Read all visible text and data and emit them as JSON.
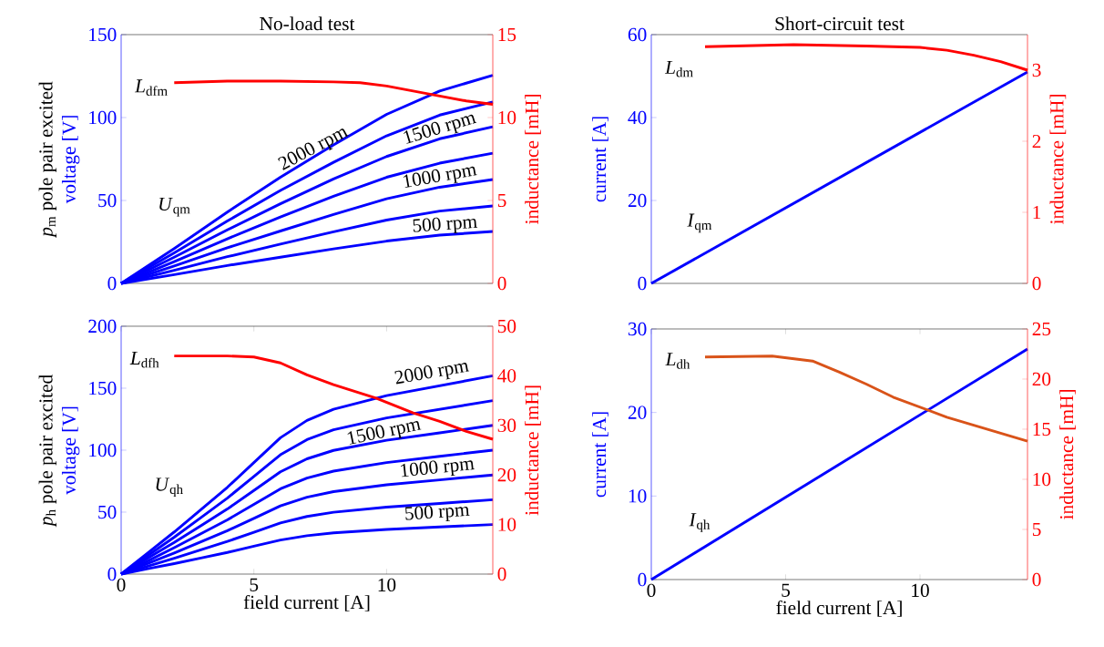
{
  "chart_data": [
    {
      "type": "line",
      "title": "No-load test",
      "ylabel": "voltage [V]",
      "y2label": "inductance [mH]",
      "xlim": [
        0,
        14
      ],
      "ylim": [
        0,
        150
      ],
      "yticks": [
        0,
        50,
        100,
        150
      ],
      "y2lim": [
        0,
        15
      ],
      "y2ticks": [
        0,
        5,
        10,
        15
      ],
      "tick_labels": "y",
      "series": [
        {
          "color": "#0000ff",
          "x": [
            0,
            2,
            4,
            6,
            8,
            10,
            12,
            14
          ],
          "values": [
            0,
            5.3,
            10.8,
            15.8,
            20.8,
            25.5,
            29.1,
            31.3
          ]
        },
        {
          "color": "#0000ff",
          "x": [
            0,
            2,
            4,
            6,
            8,
            10,
            12,
            14
          ],
          "values": [
            0,
            7.9,
            16.1,
            23.7,
            31.1,
            38.2,
            43.6,
            46.7
          ]
        },
        {
          "color": "#0000ff",
          "x": [
            0,
            2,
            4,
            6,
            8,
            10,
            12,
            14
          ],
          "values": [
            0,
            10.5,
            21.5,
            31.6,
            41.5,
            51,
            58,
            62.6
          ]
        },
        {
          "color": "#0000ff",
          "x": [
            0,
            2,
            4,
            6,
            8,
            10,
            12,
            14
          ],
          "values": [
            0,
            13.1,
            26.9,
            40,
            52.5,
            64,
            72.5,
            78.5
          ]
        },
        {
          "color": "#0000ff",
          "x": [
            0,
            2,
            4,
            6,
            8,
            10,
            12,
            14
          ],
          "values": [
            0,
            15.8,
            32.3,
            48,
            63,
            76.5,
            87.2,
            94.4
          ]
        },
        {
          "color": "#0000ff",
          "x": [
            0,
            2,
            4,
            6,
            8,
            10,
            12,
            14
          ],
          "values": [
            0,
            18.4,
            37.6,
            56,
            73,
            89,
            101.5,
            109.4
          ]
        },
        {
          "color": "#0000ff",
          "x": [
            0,
            2,
            4,
            6,
            8,
            10,
            12,
            14
          ],
          "values": [
            0,
            21,
            43,
            64,
            83.5,
            101.9,
            116,
            125.5
          ]
        },
        {
          "color": "#ff0000",
          "axis": "y2",
          "x": [
            2,
            4,
            6,
            8,
            9,
            10,
            11,
            12,
            13,
            14
          ],
          "values": [
            12.1,
            12.2,
            12.2,
            12.15,
            12.1,
            11.9,
            11.6,
            11.3,
            11.0,
            10.8
          ]
        }
      ],
      "annotations": [
        "*p*$_{m}$ pole pair excited",
        "2000 rpm",
        "1500 rpm",
        "1000 rpm",
        "500 rpm",
        "*U*$_{qm}$",
        "*L*$_{dfm}$"
      ]
    },
    {
      "type": "line",
      "title": "Short-circuit test",
      "ylabel": "current [A]",
      "y2label": "inductance [mH]",
      "xlim": [
        0,
        14
      ],
      "ylim": [
        0,
        60
      ],
      "yticks": [
        0,
        20,
        40,
        60
      ],
      "y2lim": [
        0,
        3.5
      ],
      "y2ticks": [
        0,
        1,
        2,
        3
      ],
      "tick_labels": "y",
      "series": [
        {
          "color": "#0000ff",
          "x": [
            0,
            14
          ],
          "values": [
            0,
            51
          ]
        },
        {
          "color": "#ff0000",
          "axis": "y2",
          "x": [
            2,
            5.3,
            8,
            10,
            11,
            12,
            13,
            14
          ],
          "values": [
            3.33,
            3.36,
            3.34,
            3.32,
            3.28,
            3.21,
            3.12,
            3.0
          ]
        }
      ],
      "annotations": [
        "*I*$_{qm}$",
        "*L*$_{dm}$"
      ]
    },
    {
      "type": "line",
      "xlabel": "field current [A]",
      "ylabel": "voltage [V]",
      "y2label": "inductance [mH]",
      "xlim": [
        0,
        14
      ],
      "xticks": [
        0,
        5,
        10
      ],
      "ylim": [
        0,
        200
      ],
      "yticks": [
        0,
        50,
        100,
        150,
        200
      ],
      "y2lim": [
        0,
        50
      ],
      "y2ticks": [
        0,
        10,
        20,
        30,
        40,
        50
      ],
      "series": [
        {
          "color": "#0000ff",
          "x": [
            0,
            1,
            2,
            3,
            4,
            5,
            6,
            7,
            8,
            10,
            12,
            14
          ],
          "values": [
            0,
            4.3,
            8.5,
            13,
            17.5,
            22.5,
            27.5,
            31,
            33.3,
            36,
            38,
            40
          ]
        },
        {
          "color": "#0000ff",
          "x": [
            0,
            1,
            2,
            3,
            4,
            5,
            6,
            7,
            8,
            10,
            12,
            14
          ],
          "values": [
            0,
            6.4,
            12.8,
            19.5,
            26.3,
            33.8,
            41.3,
            46.5,
            49.9,
            54,
            57,
            60
          ]
        },
        {
          "color": "#0000ff",
          "x": [
            0,
            1,
            2,
            3,
            4,
            5,
            6,
            7,
            8,
            10,
            12,
            14
          ],
          "values": [
            0,
            8.5,
            17,
            26,
            35,
            45,
            55,
            62,
            66.5,
            72,
            76,
            80
          ]
        },
        {
          "color": "#0000ff",
          "x": [
            0,
            1,
            2,
            3,
            4,
            5,
            6,
            7,
            8,
            10,
            12,
            14
          ],
          "values": [
            0,
            10.6,
            21.3,
            32.5,
            43.8,
            56.3,
            68.8,
            77.5,
            83.1,
            90,
            95,
            100
          ]
        },
        {
          "color": "#0000ff",
          "x": [
            0,
            1,
            2,
            3,
            4,
            5,
            6,
            7,
            8,
            10,
            12,
            14
          ],
          "values": [
            0,
            12.8,
            25.5,
            39,
            52.5,
            67.5,
            82.5,
            93,
            99.8,
            108,
            114,
            120
          ]
        },
        {
          "color": "#0000ff",
          "x": [
            0,
            1,
            2,
            3,
            4,
            5,
            6,
            7,
            8,
            10,
            12,
            14
          ],
          "values": [
            0,
            14.9,
            29.8,
            45.5,
            61.3,
            78.8,
            96.3,
            108.5,
            116.4,
            126,
            133,
            140
          ]
        },
        {
          "color": "#0000ff",
          "x": [
            0,
            1,
            2,
            3,
            4,
            5,
            6,
            7,
            8,
            10,
            12,
            14
          ],
          "values": [
            0,
            17,
            34,
            52,
            70,
            90,
            110,
            124,
            133,
            144,
            152,
            160
          ]
        },
        {
          "color": "#ff0000",
          "axis": "y2",
          "x": [
            2,
            3,
            4,
            5,
            6,
            7,
            8,
            9.6,
            11,
            12,
            13,
            14
          ],
          "values": [
            44,
            44,
            44,
            43.8,
            42.6,
            40.2,
            38.2,
            35.5,
            32.5,
            30.8,
            28.8,
            27.2
          ]
        }
      ],
      "annotations": [
        "*p*$_{h}$ pole pair excited",
        "2000 rpm",
        "1500 rpm",
        "1000 rpm",
        "500 rpm",
        "*U*$_{qh}$",
        "*L*$_{dfh}$"
      ]
    },
    {
      "type": "line",
      "xlabel": "field current [A]",
      "ylabel": "current [A]",
      "y2label": "inductance [mH]",
      "xlim": [
        0,
        14
      ],
      "xticks": [
        0,
        5,
        10
      ],
      "ylim": [
        0,
        30
      ],
      "yticks": [
        0,
        10,
        20,
        30
      ],
      "y2lim": [
        0,
        25
      ],
      "y2ticks": [
        0,
        5,
        10,
        15,
        20,
        25
      ],
      "series": [
        {
          "color": "#0000ff",
          "x": [
            0,
            14
          ],
          "values": [
            0,
            27.6
          ]
        },
        {
          "color": "#d95319",
          "axis": "y2",
          "x": [
            2,
            4.5,
            6,
            7,
            8,
            9,
            10,
            11,
            12,
            13,
            14
          ],
          "values": [
            22.2,
            22.3,
            21.8,
            20.7,
            19.5,
            18.2,
            17.2,
            16.2,
            15.4,
            14.6,
            13.8
          ]
        }
      ],
      "annotations": [
        "*I*$_{qh}$",
        "*L*$_{dh}$"
      ]
    }
  ]
}
